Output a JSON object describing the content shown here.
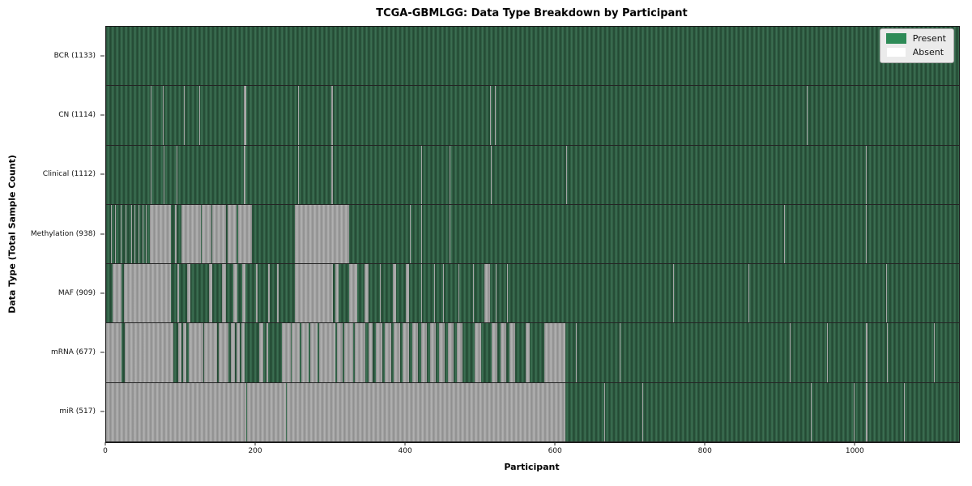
{
  "chart_data": {
    "type": "heatmap",
    "title": "TCGA-GBMLGG: Data Type Breakdown by Participant",
    "xlabel": "Participant",
    "ylabel": "Data Type (Total Sample Count)",
    "x_ticks": [
      0,
      200,
      400,
      600,
      800,
      1000
    ],
    "x_max": 1138,
    "n_participants": 1133,
    "grid": false,
    "legend_position": "upper-right",
    "legend": {
      "entries": [
        {
          "label": "Present",
          "color": "#2e8b57",
          "swatch": "present"
        },
        {
          "label": "Absent",
          "color": "#ffffff",
          "swatch": "absent"
        }
      ]
    },
    "colors": {
      "present_dark": "#224631",
      "present_light": "#3e7355",
      "absent_dark": "#8c8c8c",
      "absent_light": "#b3b3b3",
      "legend_present": "#2e8b57",
      "legend_absent": "#ffffff"
    },
    "rows": [
      {
        "label": "BCR (1133)",
        "data_type": "BCR",
        "present_count": 1133,
        "absent_ranges": []
      },
      {
        "label": "CN (1114)",
        "data_type": "CN",
        "present_count": 1114,
        "absent_ranges": [
          [
            59,
            60
          ],
          [
            76,
            77
          ],
          [
            104,
            105
          ],
          [
            124,
            125
          ],
          [
            184,
            187
          ],
          [
            256,
            257
          ],
          [
            300,
            303
          ],
          [
            512,
            513
          ],
          [
            519,
            520
          ],
          [
            935,
            936
          ]
        ]
      },
      {
        "label": "Clinical (1112)",
        "data_type": "Clinical",
        "present_count": 1112,
        "absent_ranges": [
          [
            59,
            60
          ],
          [
            77,
            78
          ],
          [
            94,
            95
          ],
          [
            184,
            186
          ],
          [
            256,
            257
          ],
          [
            300,
            303
          ],
          [
            420,
            421
          ],
          [
            458,
            459
          ],
          [
            513,
            514
          ],
          [
            614,
            615
          ],
          [
            1014,
            1015
          ]
        ]
      },
      {
        "label": "Methylation (938)",
        "data_type": "Methylation",
        "present_count": 938,
        "absent_ranges": [
          [
            7,
            8
          ],
          [
            12,
            13
          ],
          [
            19,
            20
          ],
          [
            26,
            27
          ],
          [
            33,
            34
          ],
          [
            38,
            39
          ],
          [
            43,
            44
          ],
          [
            49,
            50
          ],
          [
            53,
            54
          ],
          [
            58,
            86
          ],
          [
            92,
            94
          ],
          [
            101,
            126
          ],
          [
            128,
            140
          ],
          [
            142,
            160
          ],
          [
            162,
            174
          ],
          [
            176,
            195
          ],
          [
            252,
            324
          ],
          [
            405,
            406
          ],
          [
            420,
            421
          ],
          [
            458,
            459
          ],
          [
            905,
            906
          ],
          [
            1014,
            1015
          ]
        ]
      },
      {
        "label": "MAF (909)",
        "data_type": "MAF",
        "present_count": 909,
        "absent_ranges": [
          [
            9,
            21
          ],
          [
            24,
            86
          ],
          [
            95,
            97
          ],
          [
            108,
            112
          ],
          [
            137,
            142
          ],
          [
            155,
            160
          ],
          [
            170,
            175
          ],
          [
            182,
            186
          ],
          [
            200,
            202
          ],
          [
            216,
            218
          ],
          [
            228,
            230
          ],
          [
            252,
            303
          ],
          [
            306,
            310
          ],
          [
            324,
            335
          ],
          [
            345,
            350
          ],
          [
            365,
            366
          ],
          [
            383,
            387
          ],
          [
            400,
            404
          ],
          [
            420,
            421
          ],
          [
            438,
            439
          ],
          [
            450,
            451
          ],
          [
            470,
            471
          ],
          [
            490,
            491
          ],
          [
            505,
            512
          ],
          [
            520,
            521
          ],
          [
            535,
            536
          ],
          [
            757,
            758
          ],
          [
            857,
            858
          ],
          [
            1041,
            1042
          ]
        ]
      },
      {
        "label": "mRNA (677)",
        "data_type": "mRNA",
        "present_count": 677,
        "absent_ranges": [
          [
            0,
            20
          ],
          [
            25,
            90
          ],
          [
            96,
            100
          ],
          [
            103,
            107
          ],
          [
            110,
            130
          ],
          [
            131,
            148
          ],
          [
            150,
            163
          ],
          [
            166,
            172
          ],
          [
            174,
            178
          ],
          [
            180,
            185
          ],
          [
            204,
            210
          ],
          [
            214,
            216
          ],
          [
            235,
            246
          ],
          [
            248,
            258
          ],
          [
            260,
            270
          ],
          [
            272,
            282
          ],
          [
            284,
            306
          ],
          [
            308,
            316
          ],
          [
            318,
            330
          ],
          [
            332,
            346
          ],
          [
            350,
            356
          ],
          [
            360,
            368
          ],
          [
            372,
            380
          ],
          [
            384,
            392
          ],
          [
            396,
            404
          ],
          [
            408,
            416
          ],
          [
            420,
            428
          ],
          [
            432,
            440
          ],
          [
            444,
            452
          ],
          [
            456,
            464
          ],
          [
            468,
            476
          ],
          [
            492,
            500
          ],
          [
            514,
            522
          ],
          [
            526,
            534
          ],
          [
            538,
            546
          ],
          [
            560,
            565
          ],
          [
            585,
            613
          ],
          [
            627,
            628
          ],
          [
            685,
            686
          ],
          [
            912,
            913
          ],
          [
            962,
            963
          ],
          [
            1014,
            1016
          ],
          [
            1042,
            1043
          ],
          [
            1105,
            1106
          ]
        ]
      },
      {
        "label": "miR (517)",
        "data_type": "miR",
        "present_count": 517,
        "absent_ranges": [
          [
            0,
            187
          ],
          [
            188,
            240
          ],
          [
            241,
            613
          ],
          [
            665,
            666
          ],
          [
            715,
            716
          ],
          [
            940,
            941
          ],
          [
            998,
            999
          ],
          [
            1014,
            1016
          ],
          [
            1064,
            1065
          ]
        ]
      }
    ]
  }
}
